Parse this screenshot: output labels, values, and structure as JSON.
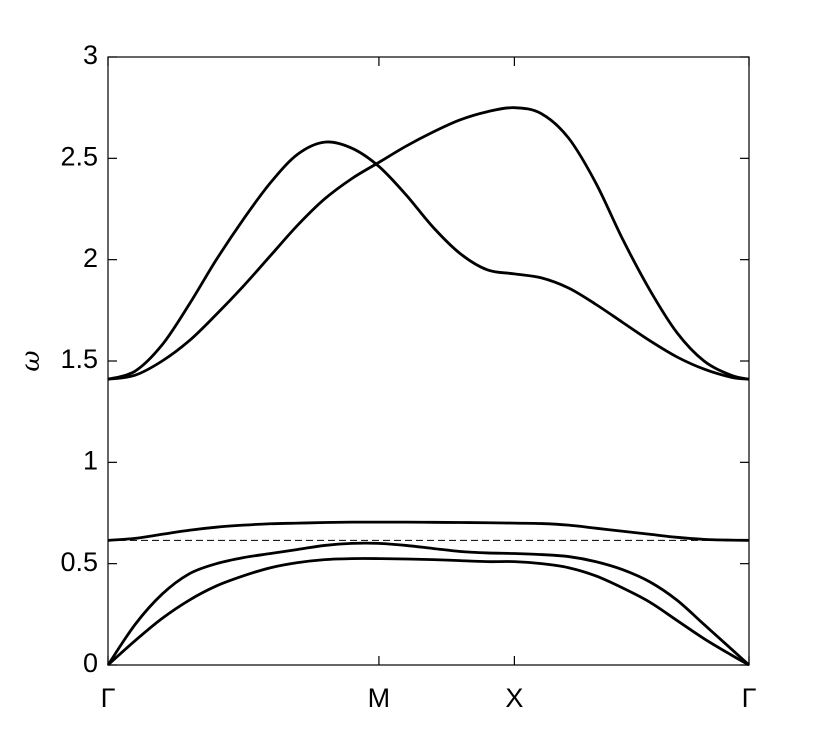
{
  "chart_data": {
    "type": "line",
    "ylabel": "ω",
    "x": [
      0,
      0.1,
      0.2,
      0.3,
      0.4,
      0.5,
      0.6,
      0.7,
      0.8,
      0.9,
      1.0,
      1.1,
      1.2,
      1.3,
      1.4,
      1.5,
      1.6,
      1.7,
      1.8,
      1.9,
      2.0,
      2.1,
      2.2,
      2.3,
      2.366
    ],
    "series": [
      {
        "color": "#000000",
        "values": [
          1.41,
          1.45,
          1.58,
          1.78,
          2.0,
          2.2,
          2.38,
          2.52,
          2.58,
          2.55,
          2.46,
          2.32,
          2.16,
          2.03,
          1.95,
          1.93,
          1.91,
          1.86,
          1.78,
          1.69,
          1.6,
          1.52,
          1.46,
          1.42,
          1.41
        ]
      },
      {
        "color": "#000000",
        "values": [
          1.41,
          1.43,
          1.5,
          1.6,
          1.73,
          1.87,
          2.02,
          2.17,
          2.3,
          2.4,
          2.48,
          2.56,
          2.63,
          2.69,
          2.73,
          2.75,
          2.72,
          2.6,
          2.38,
          2.1,
          1.85,
          1.64,
          1.5,
          1.43,
          1.41
        ]
      },
      {
        "color": "#000000",
        "values": [
          0.615,
          0.625,
          0.645,
          0.665,
          0.68,
          0.69,
          0.697,
          0.7,
          0.703,
          0.705,
          0.705,
          0.705,
          0.704,
          0.703,
          0.702,
          0.7,
          0.698,
          0.69,
          0.675,
          0.66,
          0.645,
          0.63,
          0.62,
          0.616,
          0.615
        ]
      },
      {
        "color": "#000000",
        "values": [
          0,
          0.2,
          0.35,
          0.45,
          0.5,
          0.53,
          0.55,
          0.57,
          0.59,
          0.6,
          0.6,
          0.59,
          0.575,
          0.56,
          0.553,
          0.55,
          0.545,
          0.535,
          0.51,
          0.47,
          0.41,
          0.32,
          0.2,
          0.08,
          0
        ]
      },
      {
        "color": "#000000",
        "values": [
          0,
          0.12,
          0.23,
          0.32,
          0.39,
          0.44,
          0.48,
          0.505,
          0.52,
          0.525,
          0.525,
          0.523,
          0.52,
          0.515,
          0.51,
          0.51,
          0.5,
          0.48,
          0.44,
          0.38,
          0.31,
          0.22,
          0.13,
          0.05,
          0
        ]
      }
    ],
    "hline": {
      "value": 0.615,
      "style": "dashed",
      "color": "#000000"
    },
    "xlim": [
      0,
      2.366
    ],
    "xticks": [
      {
        "value": 0,
        "label": "Γ"
      },
      {
        "value": 1,
        "label": "M"
      },
      {
        "value": 1.5,
        "label": "X"
      },
      {
        "value": 2.366,
        "label": "Γ"
      }
    ],
    "ylim": [
      0,
      3
    ],
    "yticks": [
      0,
      0.5,
      1,
      1.5,
      2,
      2.5,
      3
    ]
  }
}
